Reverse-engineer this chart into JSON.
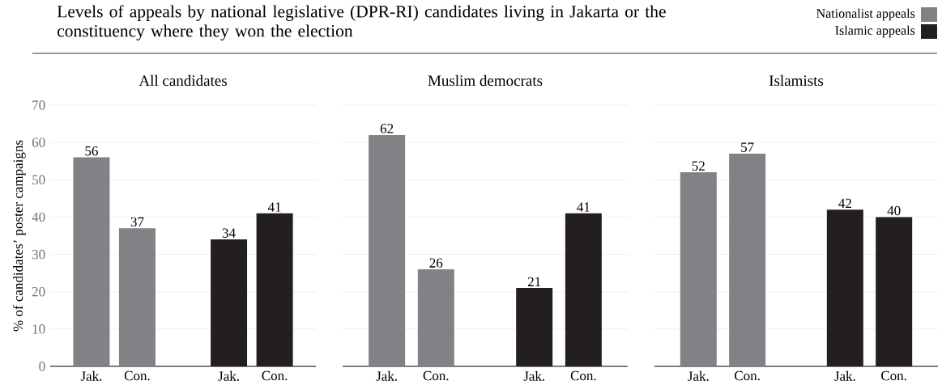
{
  "chart_data": [
    {
      "type": "bar",
      "title": "Levels of appeals by national legislative (DPR-RI) candidates living in Jakarta or the constituency where they won the election",
      "subtitle": "All candidates",
      "ylabel": "% of candidates’ poster campaigns",
      "categories": [
        "Jak.",
        "Con.",
        null,
        "Jak.",
        "Con."
      ],
      "ylim": [
        0,
        70
      ],
      "yticks": [
        0,
        10,
        20,
        30,
        40,
        50,
        60,
        70
      ],
      "grid": "y",
      "legend": "top right",
      "data_labels": true,
      "series": [
        {
          "name": "Nationalist appeals",
          "color": "#818285",
          "values": [
            56,
            37,
            null,
            null,
            null
          ]
        },
        {
          "name": "Islamic appeals",
          "color": "#231f20",
          "values": [
            null,
            null,
            null,
            34,
            41
          ]
        }
      ]
    },
    {
      "type": "bar",
      "subtitle": "Muslim democrats",
      "categories": [
        "Jak.",
        "Con.",
        null,
        "Jak.",
        "Con."
      ],
      "ylim": [
        0,
        70
      ],
      "yticks": [
        0,
        10,
        20,
        30,
        40,
        50,
        60,
        70
      ],
      "grid": "y",
      "tick_labels": "x",
      "data_labels": true,
      "series": [
        {
          "color": "#818285",
          "values": [
            62,
            26,
            null,
            null,
            null
          ]
        },
        {
          "color": "#231f20",
          "values": [
            null,
            null,
            null,
            21,
            41
          ]
        }
      ]
    },
    {
      "type": "bar",
      "subtitle": "Islamists",
      "categories": [
        "Jak.",
        "Con.",
        null,
        "Jak.",
        "Con."
      ],
      "ylim": [
        0,
        70
      ],
      "yticks": [
        0,
        10,
        20,
        30,
        40,
        50,
        60,
        70
      ],
      "grid": "y",
      "tick_labels": "x",
      "data_labels": true,
      "series": [
        {
          "color": "#818285",
          "values": [
            52,
            57,
            null,
            null,
            null
          ]
        },
        {
          "color": "#231f20",
          "values": [
            null,
            null,
            null,
            42,
            40
          ]
        }
      ]
    }
  ]
}
